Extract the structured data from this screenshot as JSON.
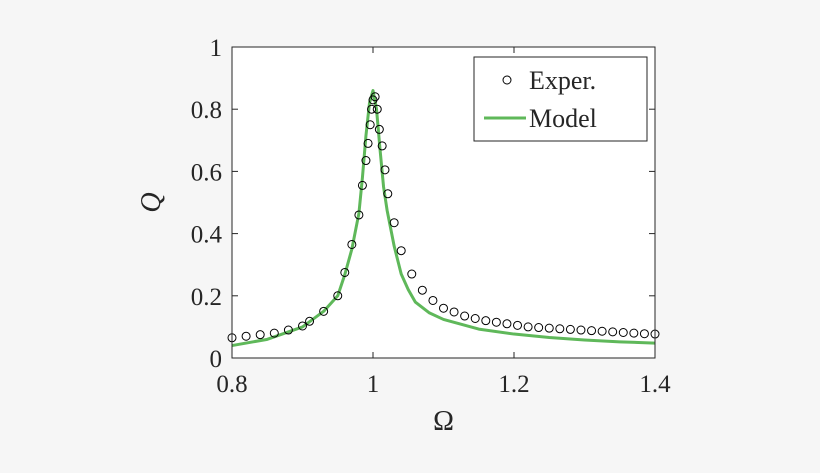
{
  "chart_data": {
    "type": "line",
    "xlabel": "Ω",
    "ylabel": "Q",
    "xlim": [
      0.8,
      1.4
    ],
    "ylim": [
      0,
      1
    ],
    "xticks": [
      "0.8",
      "1",
      "1.2",
      "1.4"
    ],
    "yticks": [
      "0",
      "0.2",
      "0.4",
      "0.6",
      "0.8",
      "1"
    ],
    "legend_position": "top-right",
    "grid": false,
    "series": [
      {
        "name": "Exper.",
        "kind": "markers",
        "marker": "open-circle",
        "color": "#000000",
        "x": [
          0.8,
          0.82,
          0.84,
          0.86,
          0.88,
          0.9,
          0.91,
          0.93,
          0.95,
          0.96,
          0.97,
          0.98,
          0.985,
          0.99,
          0.993,
          0.996,
          0.998,
          1.0,
          1.003,
          1.006,
          1.009,
          1.013,
          1.017,
          1.021,
          1.03,
          1.04,
          1.055,
          1.07,
          1.085,
          1.1,
          1.115,
          1.13,
          1.145,
          1.16,
          1.175,
          1.19,
          1.205,
          1.22,
          1.235,
          1.25,
          1.265,
          1.28,
          1.295,
          1.31,
          1.325,
          1.34,
          1.355,
          1.37,
          1.385,
          1.4
        ],
        "y": [
          0.065,
          0.07,
          0.075,
          0.08,
          0.09,
          0.103,
          0.118,
          0.15,
          0.2,
          0.275,
          0.365,
          0.46,
          0.555,
          0.635,
          0.69,
          0.75,
          0.8,
          0.83,
          0.84,
          0.8,
          0.735,
          0.682,
          0.605,
          0.528,
          0.435,
          0.345,
          0.27,
          0.218,
          0.185,
          0.16,
          0.148,
          0.135,
          0.127,
          0.12,
          0.115,
          0.11,
          0.105,
          0.1,
          0.098,
          0.096,
          0.094,
          0.092,
          0.09,
          0.088,
          0.086,
          0.084,
          0.082,
          0.08,
          0.078,
          0.077
        ]
      },
      {
        "name": "Model",
        "kind": "line",
        "color": "#5fb85a",
        "x": [
          0.8,
          0.85,
          0.9,
          0.93,
          0.95,
          0.96,
          0.97,
          0.98,
          0.985,
          0.99,
          0.995,
          1.0,
          1.005,
          1.01,
          1.015,
          1.02,
          1.03,
          1.04,
          1.05,
          1.06,
          1.08,
          1.1,
          1.15,
          1.2,
          1.25,
          1.3,
          1.35,
          1.4
        ],
        "y": [
          0.04,
          0.06,
          0.1,
          0.15,
          0.2,
          0.268,
          0.35,
          0.465,
          0.58,
          0.715,
          0.82,
          0.86,
          0.8,
          0.67,
          0.55,
          0.475,
          0.36,
          0.27,
          0.22,
          0.18,
          0.145,
          0.124,
          0.093,
          0.077,
          0.066,
          0.058,
          0.052,
          0.048
        ]
      }
    ]
  }
}
